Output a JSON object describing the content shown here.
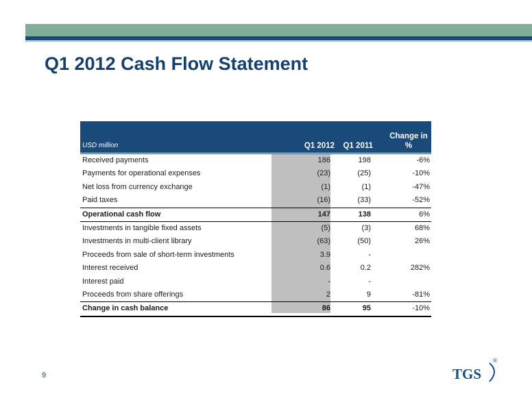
{
  "slide": {
    "title": "Q1 2012 Cash Flow Statement",
    "page_number": "9"
  },
  "table": {
    "unit_label": "USD million",
    "col_q12012": "Q1 2012",
    "col_q12011": "Q1 2011",
    "col_change_line1": "Change in",
    "col_change_line2": "%",
    "rows": [
      {
        "label": "Received payments",
        "q1_2012": "186",
        "q1_2011": "198",
        "change": "-6%"
      },
      {
        "label": "Payments for operational expenses",
        "q1_2012": "(23)",
        "q1_2011": "(25)",
        "change": "-10%"
      },
      {
        "label": "Net loss from currency exchange",
        "q1_2012": "(1)",
        "q1_2011": "(1)",
        "change": "-47%"
      },
      {
        "label": "Paid taxes",
        "q1_2012": "(16)",
        "q1_2011": "(33)",
        "change": "-52%"
      },
      {
        "label": "Operational cash flow",
        "q1_2012": "147",
        "q1_2011": "138",
        "change": "6%"
      },
      {
        "label": "Investments in tangible fixed assets",
        "q1_2012": "(5)",
        "q1_2011": "(3)",
        "change": "68%"
      },
      {
        "label": "Investments in multi-client library",
        "q1_2012": "(63)",
        "q1_2011": "(50)",
        "change": "26%"
      },
      {
        "label": "Proceeds from sale of short-term investments",
        "q1_2012": "3.9",
        "q1_2011": "-",
        "change": ""
      },
      {
        "label": "Interest received",
        "q1_2012": "0.6",
        "q1_2011": "0.2",
        "change": "282%"
      },
      {
        "label": "Interest paid",
        "q1_2012": "-",
        "q1_2011": "-",
        "change": ""
      },
      {
        "label": "Proceeds from share offerings",
        "q1_2012": "2",
        "q1_2011": "9",
        "change": "-81%"
      },
      {
        "label": "Change in cash balance",
        "q1_2012": "86",
        "q1_2011": "95",
        "change": "-10%"
      }
    ]
  },
  "logo": {
    "text": "TGS",
    "color": "#1a4a7a",
    "icon": "tgs-logo-icon"
  },
  "colors": {
    "accent_green": "#7fae99",
    "accent_blue": "#1a4a7a",
    "shade_gray": "#bfbfbf"
  }
}
